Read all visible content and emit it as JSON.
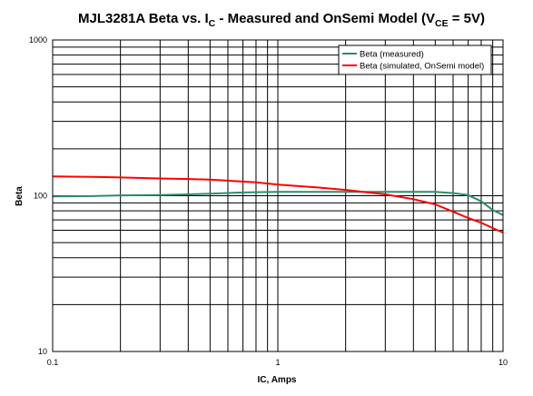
{
  "colors": {
    "measured": "#2e8b6a",
    "simulated": "#ff0000",
    "grid": "#000000",
    "plot_bg": "#ffffff"
  },
  "chart_data": {
    "type": "line",
    "title": {
      "main": "MJL3281A Beta vs. I",
      "main_sub": "C",
      "mid": " - Measured and OnSemi Model (V",
      "mid_sub": "CE",
      "tail": " = 5V)"
    },
    "xlabel": "IC, Amps",
    "ylabel": "Beta",
    "xscale": "log",
    "yscale": "log",
    "xlim": [
      0.1,
      10
    ],
    "ylim": [
      10,
      1000
    ],
    "x_tick_labels": [
      "0.1",
      "1",
      "10"
    ],
    "y_tick_labels": [
      "10",
      "100",
      "1000"
    ],
    "grid": true,
    "legend_position": "top-right",
    "series": [
      {
        "name": "Beta (measured)",
        "color_key": "measured",
        "points": [
          [
            0.1,
            99
          ],
          [
            0.15,
            99.5
          ],
          [
            0.2,
            100.5
          ],
          [
            0.3,
            101
          ],
          [
            0.4,
            102
          ],
          [
            0.5,
            103
          ],
          [
            0.7,
            105
          ],
          [
            1.0,
            106
          ],
          [
            1.5,
            106
          ],
          [
            2.0,
            106
          ],
          [
            3.0,
            106
          ],
          [
            4.0,
            106
          ],
          [
            5.0,
            106
          ],
          [
            6.0,
            104
          ],
          [
            7.0,
            101
          ],
          [
            8.0,
            92
          ],
          [
            9.0,
            81
          ],
          [
            10.0,
            75
          ]
        ]
      },
      {
        "name": "Beta (simulated, OnSemi model)",
        "color_key": "simulated",
        "points": [
          [
            0.1,
            133
          ],
          [
            0.15,
            132
          ],
          [
            0.2,
            131
          ],
          [
            0.3,
            129
          ],
          [
            0.4,
            128
          ],
          [
            0.5,
            127
          ],
          [
            0.6,
            125
          ],
          [
            0.8,
            122
          ],
          [
            1.0,
            118
          ],
          [
            1.5,
            113
          ],
          [
            2.0,
            109
          ],
          [
            3.0,
            102
          ],
          [
            4.0,
            95
          ],
          [
            5.0,
            88
          ],
          [
            6.0,
            79
          ],
          [
            7.0,
            72
          ],
          [
            8.0,
            67
          ],
          [
            9.0,
            62
          ],
          [
            10.0,
            58
          ]
        ]
      }
    ]
  }
}
